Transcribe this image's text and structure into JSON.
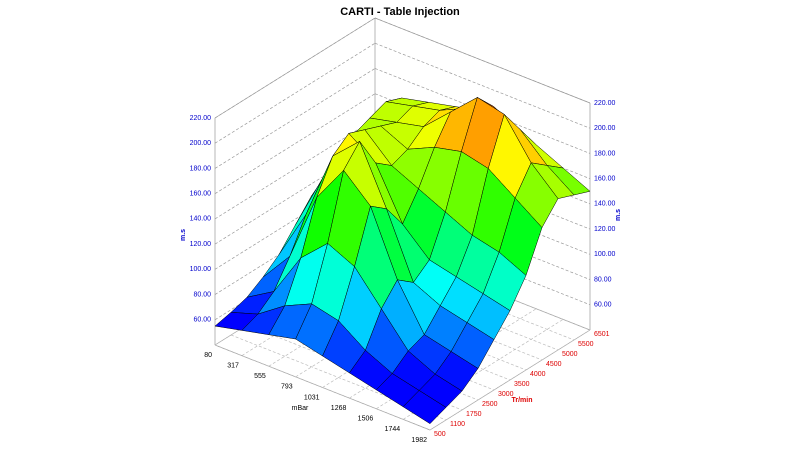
{
  "chart_data": {
    "type": "surface3d",
    "title": "CARTI - Table Injection",
    "x": {
      "label": "mBar",
      "categories": [
        "80",
        "317",
        "555",
        "793",
        "1031",
        "1268",
        "1506",
        "1744",
        "1982"
      ],
      "color": "#000000"
    },
    "y": {
      "label": "Tr/min",
      "categories": [
        "500",
        "1100",
        "1750",
        "2500",
        "3000",
        "3500",
        "4000",
        "4500",
        "5000",
        "5500",
        "6501"
      ],
      "color": "#dd0000"
    },
    "z": {
      "label": "m.s",
      "color": "#0000cc",
      "zlim": [
        40,
        220
      ],
      "zticks": [
        {
          "value": 60,
          "label": "60.00"
        },
        {
          "value": 80,
          "label": "80.00"
        },
        {
          "value": 100,
          "label": "100.00"
        },
        {
          "value": 120,
          "label": "120.00"
        },
        {
          "value": 140,
          "label": "140.00"
        },
        {
          "value": 160,
          "label": "160.00"
        },
        {
          "value": 180,
          "label": "180.00"
        },
        {
          "value": 200,
          "label": "200.00"
        },
        {
          "value": 220,
          "label": "220.00"
        }
      ]
    },
    "colormap": [
      "#0000ff",
      "#00ffff",
      "#00ff00",
      "#ffff00",
      "#ff0000"
    ],
    "grid": true,
    "values": [
      [
        55,
        58,
        62,
        70,
        80,
        95,
        110,
        120,
        125,
        130,
        130
      ],
      [
        60,
        65,
        75,
        95,
        120,
        140,
        150,
        160,
        165,
        170,
        165
      ],
      [
        65,
        80,
        110,
        150,
        175,
        185,
        180,
        175,
        170,
        175,
        170
      ],
      [
        70,
        90,
        130,
        180,
        195,
        170,
        160,
        165,
        175,
        180,
        175
      ],
      [
        65,
        85,
        120,
        160,
        150,
        130,
        150,
        175,
        195,
        190,
        180
      ],
      [
        60,
        70,
        95,
        110,
        100,
        110,
        140,
        180,
        215,
        200,
        175
      ],
      [
        55,
        60,
        70,
        75,
        90,
        105,
        130,
        175,
        210,
        190,
        170
      ],
      [
        50,
        55,
        60,
        70,
        85,
        100,
        125,
        160,
        180,
        170,
        160
      ],
      [
        45,
        50,
        55,
        65,
        80,
        95,
        115,
        145,
        160,
        155,
        150
      ]
    ]
  }
}
